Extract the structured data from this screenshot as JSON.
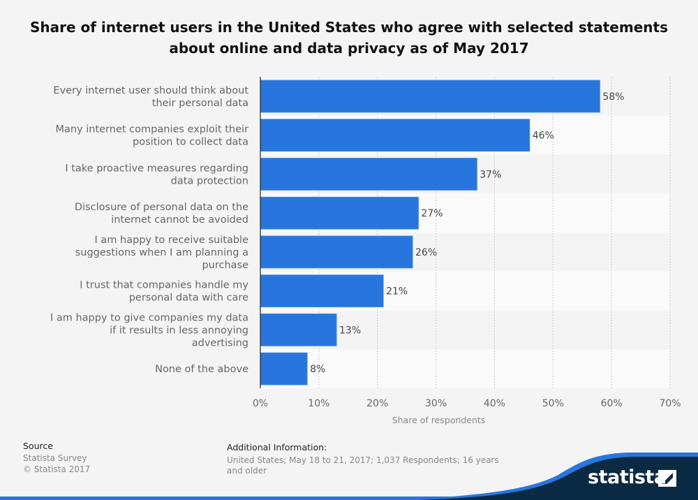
{
  "chart_data": {
    "type": "bar",
    "orientation": "horizontal",
    "title": "Share of internet users in the United States who agree with selected statements about online and data privacy as of May 2017",
    "categories": [
      [
        "Every internet user should think about",
        "their personal data"
      ],
      [
        "Many internet companies exploit their",
        "position to collect data"
      ],
      [
        "I take proactive measures regarding",
        "data protection"
      ],
      [
        "Disclosure of personal data on the",
        "internet cannot be avoided"
      ],
      [
        "I am happy to receive suitable",
        "suggestions when I am planning a",
        "purchase"
      ],
      [
        "I trust that companies handle my",
        "personal data with care"
      ],
      [
        "I am happy to give companies my data",
        "if it results in less annoying",
        "advertising"
      ],
      [
        "None of the above"
      ]
    ],
    "values": [
      58,
      46,
      37,
      27,
      26,
      21,
      13,
      8
    ],
    "data_labels": [
      "58%",
      "46%",
      "37%",
      "27%",
      "26%",
      "21%",
      "13%",
      "8%"
    ],
    "xlabel": "Share of respondents",
    "xlim": [
      0,
      70
    ],
    "xticks": [
      "0%",
      "10%",
      "20%",
      "30%",
      "40%",
      "50%",
      "60%",
      "70%"
    ],
    "grid": true,
    "bar_color": "#2876dd"
  },
  "footer": {
    "source_label": "Source",
    "source_lines": [
      "Statista Survey",
      "© Statista 2017"
    ],
    "additional_label": "Additional Information:",
    "additional_text": "United States; May 18 to 21, 2017; 1,037 Respondents; 16 years and older",
    "logo": "statista"
  }
}
